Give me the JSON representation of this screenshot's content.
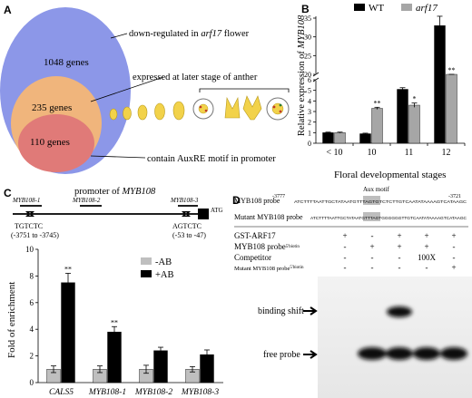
{
  "panel_a": {
    "label": "A",
    "outer_count": "1048 genes",
    "middle_count": "235 genes",
    "inner_count": "110 genes",
    "annot_downregulated_pre": "down-regulated in ",
    "annot_downregulated_italic": "arf17",
    "annot_downregulated_post": " flower",
    "annot_expressed": "expressed at later stage of anther",
    "annot_auxre": "contain AuxRE motif in promoter",
    "colors": {
      "outer": "#8c97e8",
      "middle": "#f0b57c",
      "inner": "#e07a78"
    }
  },
  "panel_b": {
    "label": "B",
    "legend_wt": "WT",
    "legend_mut": "arf17",
    "ylabel_pre": "Relative expression of ",
    "ylabel_gene": "MYB108",
    "xlabel": "Floral developmental stages",
    "categories": [
      "< 10",
      "10",
      "11",
      "12"
    ],
    "yticks": [
      "0",
      "1",
      "2",
      "3",
      "4",
      "5",
      "6",
      "20",
      "25",
      "30",
      "35"
    ],
    "significance": [
      "",
      "**",
      "*",
      "**"
    ]
  },
  "panel_c": {
    "label": "C",
    "promoter_title_pre": "promoter of ",
    "promoter_title_gene": "MYB108",
    "region1": "MYB108-1",
    "region2": "MYB108-2",
    "region3": "MYB108-3",
    "atg": "ATG",
    "motif1_seq": "TGTCTC",
    "motif1_pos": "(-3751 to -3745)",
    "motif2_seq": "AGTCTC",
    "motif2_pos": "(-53 to -47)",
    "legend_minus": "-AB",
    "legend_plus": "+AB",
    "ylabel": "Fold of  enrichment",
    "categories": [
      "CALS5",
      "MYB108-1",
      "MYB108-2",
      "MYB108-3"
    ],
    "yticks": [
      "0",
      "2",
      "4",
      "6",
      "8",
      "10"
    ],
    "significance": [
      "**",
      "**",
      "",
      ""
    ]
  },
  "panel_d": {
    "label": "D",
    "probe_label": "MYB108 probe",
    "probe_start": "-3777",
    "probe_end": "-3721",
    "aux_motif": "Aux motif",
    "probe_seq": "ATCTTTTAATTGCTATAATGTTTAGTGTCTCTTGTCAATATAAAAGTCATAAGC",
    "mutant_probe_label": "Mutant MYB108 probe",
    "mutant_seq": "ATCTTTTAATTGCTATAATGTTTAGTGGGGGGTTGTCAATATAAAAGTCATAAGC",
    "rows": [
      {
        "label": "GST-ARF17",
        "sup": "",
        "cells": [
          "+",
          "-",
          "+",
          "+",
          "+"
        ]
      },
      {
        "label": "MYB108 probe",
        "sup": "5'biotin",
        "cells": [
          "-",
          "+",
          "+",
          "+",
          "-"
        ]
      },
      {
        "label": "Competitor",
        "sup": "",
        "cells": [
          "-",
          "-",
          "-",
          "100X",
          "-"
        ]
      },
      {
        "label": "Mutant MYB108 probe",
        "sup": "5'biotin",
        "cells": [
          "-",
          "-",
          "-",
          "-",
          "+"
        ]
      }
    ],
    "binding_shift": "binding shift",
    "free_probe": "free probe"
  },
  "chart_data": [
    {
      "type": "bar",
      "title": "",
      "xlabel": "Floral developmental stages",
      "ylabel": "Relative expression of MYB108",
      "categories": [
        "< 10",
        "10",
        "11",
        "12"
      ],
      "series": [
        {
          "name": "WT",
          "values": [
            1.0,
            0.9,
            5.1,
            33.0
          ],
          "errors": [
            0.05,
            0.05,
            0.15,
            2.5
          ],
          "color": "#000000"
        },
        {
          "name": "arf17",
          "values": [
            1.0,
            3.3,
            3.6,
            8.0
          ],
          "errors": [
            0.05,
            0.1,
            0.2,
            1.5
          ],
          "color": "#a6a6a6"
        }
      ],
      "ylim": [
        0,
        35
      ],
      "axis_break": [
        6,
        20
      ],
      "legend": "top-right"
    },
    {
      "type": "bar",
      "title": "",
      "xlabel": "",
      "ylabel": "Fold of  enrichment",
      "categories": [
        "CALS5",
        "MYB108-1",
        "MYB108-2",
        "MYB108-3"
      ],
      "series": [
        {
          "name": "-AB",
          "values": [
            1.0,
            1.0,
            1.0,
            1.0
          ],
          "errors": [
            0.25,
            0.25,
            0.3,
            0.2
          ],
          "color": "#bfbfbf"
        },
        {
          "name": "+AB",
          "values": [
            7.5,
            3.8,
            2.4,
            2.1
          ],
          "errors": [
            0.7,
            0.4,
            0.25,
            0.35
          ],
          "color": "#000000"
        }
      ],
      "ylim": [
        0,
        10
      ],
      "legend": "top-right"
    }
  ]
}
